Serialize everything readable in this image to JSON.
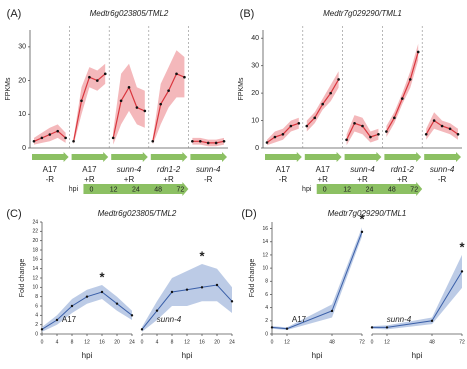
{
  "chart_data": [
    {
      "type": "segmented_line",
      "panel_label": "(A)",
      "title": "Medtr6g023805/TML2",
      "y_label": "FPKMs",
      "ylim": [
        0,
        35
      ],
      "yticks": [
        0,
        10,
        20,
        30
      ],
      "color": "#d9363e",
      "band_color": "#f4b8bb",
      "arrow_color": "#8cc063",
      "segments": [
        {
          "label": "A17",
          "sublabel": "-R",
          "values": [
            2,
            3,
            4,
            5,
            3
          ],
          "lower": [
            1,
            1.5,
            2,
            3,
            1.5
          ],
          "upper": [
            3,
            4.5,
            6,
            7,
            4.5
          ]
        },
        {
          "label": "A17",
          "sublabel": "+R",
          "values": [
            2,
            14,
            21,
            20,
            22
          ],
          "lower": [
            1,
            10,
            18,
            17,
            19
          ],
          "upper": [
            3,
            18,
            24,
            23,
            25
          ]
        },
        {
          "label": "sunn-4",
          "sublabel": "+R",
          "values": [
            3,
            14,
            18,
            12,
            11
          ],
          "lower": [
            1,
            7,
            11,
            7,
            6
          ],
          "upper": [
            5,
            22,
            25,
            18,
            17
          ]
        },
        {
          "label": "rdn1-2",
          "sublabel": "+R",
          "values": [
            2,
            13,
            17,
            22,
            21
          ],
          "lower": [
            1,
            7,
            12,
            15,
            15
          ],
          "upper": [
            3,
            19,
            24,
            29,
            27
          ]
        },
        {
          "label": "sunn-4",
          "sublabel": "-R",
          "values": [
            2,
            2,
            1.5,
            1.5,
            2
          ],
          "lower": [
            1,
            1,
            0.5,
            0.5,
            1
          ],
          "upper": [
            3,
            3,
            2.5,
            2.5,
            3
          ]
        }
      ],
      "timeline": {
        "label": "hpi",
        "ticks": [
          0,
          12,
          24,
          48,
          72
        ]
      }
    },
    {
      "type": "segmented_line",
      "panel_label": "(B)",
      "title": "Medtr7g029290/TML1",
      "y_label": "FPKMs",
      "ylim": [
        0,
        43
      ],
      "yticks": [
        0,
        10,
        20,
        30,
        40
      ],
      "color": "#d9363e",
      "band_color": "#f4b8bb",
      "arrow_color": "#8cc063",
      "segments": [
        {
          "label": "A17",
          "sublabel": "-R",
          "values": [
            2,
            4,
            5,
            8,
            9
          ],
          "lower": [
            1,
            2,
            3,
            6,
            7
          ],
          "upper": [
            3,
            6,
            7,
            10,
            11
          ]
        },
        {
          "label": "A17",
          "sublabel": "+R",
          "values": [
            8,
            11,
            16,
            20,
            25
          ],
          "lower": [
            6,
            9,
            14,
            17,
            22
          ],
          "upper": [
            10,
            13,
            18,
            23,
            28
          ]
        },
        {
          "label": "sunn-4",
          "sublabel": "+R",
          "values": [
            3,
            9,
            8,
            4,
            5
          ],
          "lower": [
            1,
            6,
            5,
            2,
            3
          ],
          "upper": [
            5,
            12,
            11,
            6,
            7
          ]
        },
        {
          "label": "rdn1-2",
          "sublabel": "+R",
          "values": [
            6,
            11,
            18,
            25,
            35
          ],
          "lower": [
            4,
            9,
            16,
            22,
            32
          ],
          "upper": [
            8,
            13,
            20,
            28,
            38
          ]
        },
        {
          "label": "sunn-4",
          "sublabel": "-R",
          "values": [
            5,
            10,
            8,
            7,
            5
          ],
          "lower": [
            3,
            7,
            6,
            5,
            3
          ],
          "upper": [
            7,
            13,
            10,
            9,
            7
          ]
        }
      ],
      "timeline": {
        "label": "hpi",
        "ticks": [
          0,
          12,
          24,
          48,
          72
        ]
      }
    },
    {
      "type": "multi_line",
      "panel_label": "(C)",
      "title": "Medtr6g023805/TML2",
      "y_label": "Fold change",
      "x_label": "hpi",
      "ylim": [
        0,
        24
      ],
      "yticks": [
        0,
        2,
        4,
        6,
        8,
        10,
        12,
        14,
        16,
        18,
        20,
        22,
        24
      ],
      "xlim": [
        0,
        24
      ],
      "xticks": [
        0,
        4,
        8,
        12,
        16,
        20,
        24
      ],
      "color": "#3a5fa8",
      "band_color": "#bccbe6",
      "panels": [
        {
          "label": "A17",
          "annotation": "*",
          "x": [
            0,
            4,
            8,
            12,
            16,
            20,
            24
          ],
          "values": [
            1,
            3,
            6,
            8,
            9,
            6.5,
            4
          ],
          "lower": [
            0.5,
            2,
            4.5,
            6.5,
            7.5,
            5,
            3
          ],
          "upper": [
            1.5,
            4,
            7.5,
            9.5,
            10.5,
            8,
            5
          ]
        },
        {
          "label": "sunn-4",
          "annotation": "*",
          "x": [
            0,
            4,
            8,
            12,
            16,
            20,
            24
          ],
          "values": [
            1,
            5,
            9,
            9.5,
            10,
            10.5,
            7
          ],
          "lower": [
            0.5,
            3,
            6,
            6,
            7,
            7,
            4.5
          ],
          "upper": [
            1.5,
            7,
            12,
            13.5,
            15,
            14,
            10
          ]
        }
      ]
    },
    {
      "type": "multi_line",
      "panel_label": "(D)",
      "title": "Medtr7g029290/TML1",
      "y_label": "Fold change",
      "x_label": "hpi",
      "ylim": [
        0,
        17
      ],
      "yticks": [
        0,
        2,
        4,
        6,
        8,
        10,
        12,
        14,
        16
      ],
      "xlim": [
        0,
        72
      ],
      "xticks": [
        0,
        12,
        48,
        72
      ],
      "color": "#3a5fa8",
      "band_color": "#bccbe6",
      "panels": [
        {
          "label": "A17",
          "annotation": "*",
          "x": [
            0,
            12,
            48,
            72
          ],
          "values": [
            1,
            0.8,
            3.5,
            15.5
          ],
          "lower": [
            0.8,
            0.6,
            2.5,
            14.8
          ],
          "upper": [
            1.2,
            1,
            4.5,
            16.2
          ]
        },
        {
          "label": "sunn-4",
          "annotation": "*",
          "x": [
            0,
            12,
            48,
            72
          ],
          "values": [
            1,
            1,
            2,
            9.5
          ],
          "lower": [
            0.8,
            0.7,
            1.5,
            7
          ],
          "upper": [
            1.2,
            1.3,
            2.5,
            12
          ]
        }
      ]
    }
  ]
}
